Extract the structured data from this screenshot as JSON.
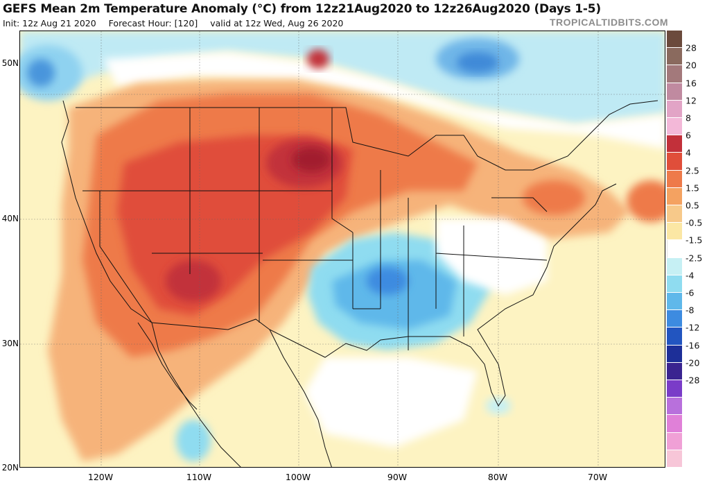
{
  "title": "GEFS Mean 2m Temperature Anomaly (°C) from 12z21Aug2020 to 12z26Aug2020 (Days 1-5)",
  "init_text": "Init: 12z Aug 21 2020",
  "forecast_hour_text": "Forecast Hour: [120]",
  "valid_text": "valid at 12z Wed, Aug 26 2020",
  "brand": "TROPICALTIDBITS.COM",
  "lat_labels": [
    "50N",
    "40N",
    "30N",
    "20N"
  ],
  "lon_labels": [
    "120W",
    "110W",
    "100W",
    "90W",
    "80W",
    "70W"
  ],
  "colorbar": {
    "labels": [
      "28",
      "20",
      "16",
      "12",
      "8",
      "6",
      "4",
      "2.5",
      "1.5",
      "0.5",
      "-0.5",
      "-1.5",
      "-2.5",
      "-4",
      "-6",
      "-8",
      "-12",
      "-16",
      "-20",
      "-28"
    ],
    "colors": [
      "#6b4a3c",
      "#8a6a5e",
      "#a3797b",
      "#c08aa0",
      "#e2a4c6",
      "#f3b8d8",
      "#c2303a",
      "#e04e3a",
      "#ee7a4a",
      "#f4a261",
      "#f7c98a",
      "#fbe7a4",
      "#ffffff",
      "#c6f0f4",
      "#8fdcf0",
      "#5fb8ea",
      "#3d8be0",
      "#2255c0",
      "#1d2f98",
      "#3a2490",
      "#7a3cc8",
      "#b870dc",
      "#e080d8",
      "#f0a0d6",
      "#f7c6d8"
    ]
  }
}
